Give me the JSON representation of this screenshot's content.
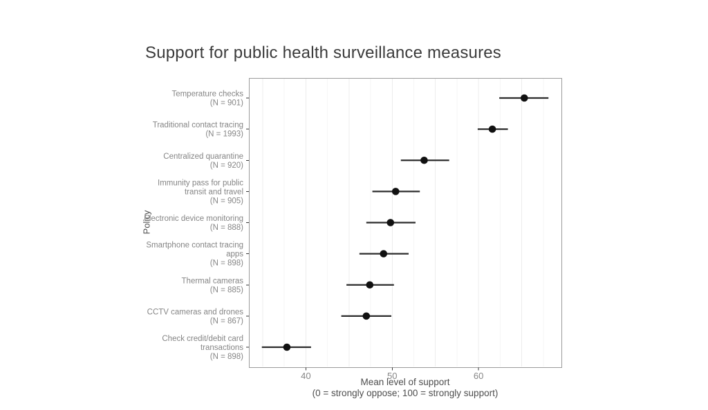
{
  "chart_data": {
    "type": "scatter",
    "subtype": "pointrange-horizontal",
    "title": "Support for public health surveillance measures",
    "xlabel": "Mean level of support",
    "xlabel_sub": "(0 = strongly oppose; 100 = strongly support)",
    "ylabel": "Policy",
    "xlim": [
      33.4,
      69.6
    ],
    "xticks": [
      40,
      50,
      60
    ],
    "grid_major": [
      35,
      40,
      45,
      50,
      55,
      60,
      65
    ],
    "grid_minor": [
      37.5,
      42.5,
      47.5,
      52.5,
      57.5,
      62.5,
      67.5
    ],
    "grid_on": true,
    "legend": "none",
    "points": [
      {
        "label_lines": [
          "Temperature checks",
          "(N = 901)"
        ],
        "category": "Temperature checks",
        "n": 901,
        "mean": 65.3,
        "ci_low": 62.4,
        "ci_high": 68.1
      },
      {
        "label_lines": [
          "Traditional contact tracing",
          "(N = 1993)"
        ],
        "category": "Traditional contact tracing",
        "n": 1993,
        "mean": 61.6,
        "ci_low": 59.9,
        "ci_high": 63.4
      },
      {
        "label_lines": [
          "Centralized quarantine",
          "(N = 920)"
        ],
        "category": "Centralized quarantine",
        "n": 920,
        "mean": 53.7,
        "ci_low": 51.0,
        "ci_high": 56.6
      },
      {
        "label_lines": [
          "Immunity pass for public",
          "transit and travel",
          "(N = 905)"
        ],
        "category": "Immunity pass for public transit and travel",
        "n": 905,
        "mean": 50.4,
        "ci_low": 47.7,
        "ci_high": 53.2
      },
      {
        "label_lines": [
          "Electronic device monitoring",
          "(N = 888)"
        ],
        "category": "Electronic device monitoring",
        "n": 888,
        "mean": 49.8,
        "ci_low": 47.0,
        "ci_high": 52.7
      },
      {
        "label_lines": [
          "Smartphone contact tracing",
          "apps",
          "(N = 898)"
        ],
        "category": "Smartphone contact tracing apps",
        "n": 898,
        "mean": 49.0,
        "ci_low": 46.2,
        "ci_high": 51.9
      },
      {
        "label_lines": [
          "Thermal cameras",
          "(N = 885)"
        ],
        "category": "Thermal cameras",
        "n": 885,
        "mean": 47.4,
        "ci_low": 44.7,
        "ci_high": 50.2
      },
      {
        "label_lines": [
          "CCTV cameras and drones",
          "(N = 867)"
        ],
        "category": "CCTV cameras and drones",
        "n": 867,
        "mean": 47.0,
        "ci_low": 44.1,
        "ci_high": 49.9
      },
      {
        "label_lines": [
          "Check credit/debit card",
          "transactions",
          "(N = 898)"
        ],
        "category": "Check credit/debit card transactions",
        "n": 898,
        "mean": 37.8,
        "ci_low": 34.9,
        "ci_high": 40.6
      }
    ],
    "colors": {
      "point": "#111111",
      "range_line": "#2b2b2b",
      "grid_major": "#ececec",
      "grid_minor": "#f6f6f6",
      "panel_border": "#9a9a9a",
      "panel_bg": "#ffffff",
      "tick_mark": "#333333",
      "axis_text": "#858585",
      "axis_title": "#4d4d4d",
      "title": "#3a3a3a"
    }
  }
}
